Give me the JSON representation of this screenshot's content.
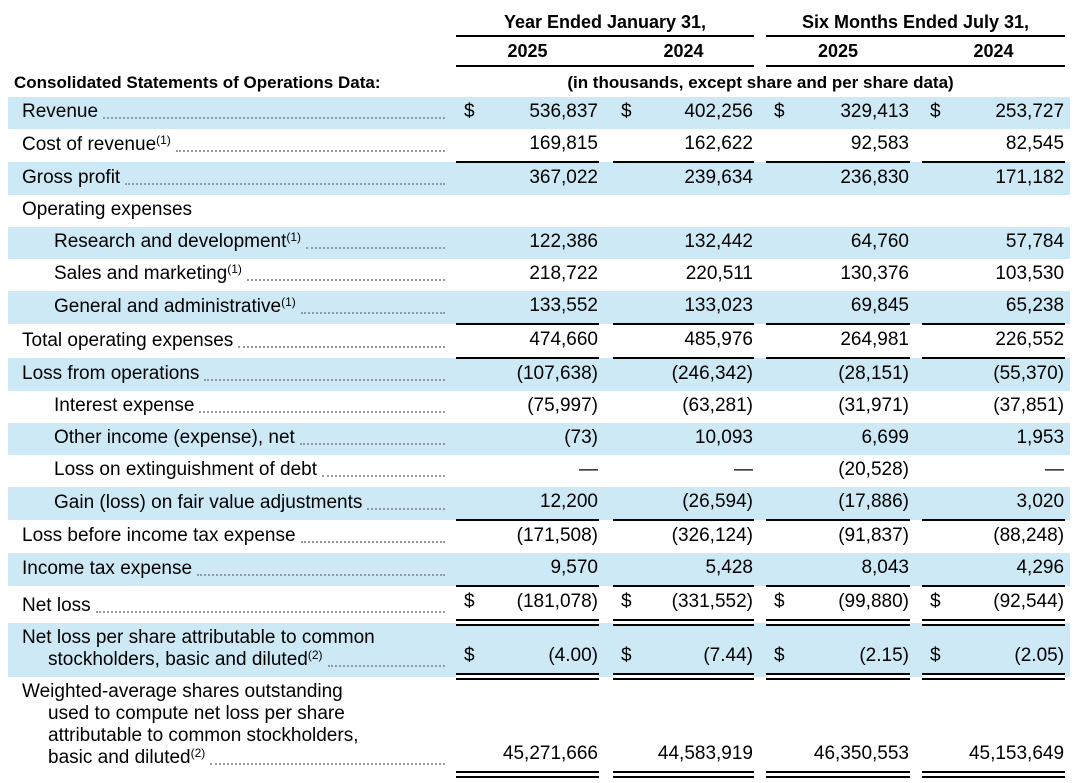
{
  "page": {
    "background_color": "#ffffff",
    "stripe_color": "#cde9f6",
    "text_color": "#000000",
    "rule_color": "#000000"
  },
  "currency_symbol": "$",
  "header": {
    "section_title": "Consolidated Statements of Operations Data:",
    "units_note": "(in thousands, except share and per share data)",
    "column_groups": [
      {
        "label": "Year Ended January 31,",
        "years": [
          "2025",
          "2024"
        ]
      },
      {
        "label": "Six Months Ended July 31,",
        "years": [
          "2025",
          "2024"
        ]
      }
    ]
  },
  "rows": [
    {
      "name": "revenue",
      "label": "Revenue",
      "sup": "",
      "indent": 0,
      "dollar": true,
      "leader": true,
      "values": [
        "536,837",
        "402,256",
        "329,413",
        "253,727"
      ],
      "rule_above": false,
      "double_below": false
    },
    {
      "name": "cost-of-revenue",
      "label": "Cost of revenue",
      "sup": "(1)",
      "indent": 0,
      "dollar": false,
      "leader": true,
      "values": [
        "169,815",
        "162,622",
        "92,583",
        "82,545"
      ],
      "rule_above": false,
      "double_below": false
    },
    {
      "name": "gross-profit",
      "label": "Gross profit",
      "sup": "",
      "indent": 0,
      "dollar": false,
      "leader": true,
      "values": [
        "367,022",
        "239,634",
        "236,830",
        "171,182"
      ],
      "rule_above": true,
      "double_below": false
    },
    {
      "name": "operating-expenses",
      "label": "Operating expenses",
      "sup": "",
      "indent": 0,
      "dollar": false,
      "leader": false,
      "values": null,
      "rule_above": false,
      "double_below": false
    },
    {
      "name": "research-and-development",
      "label": "Research and development",
      "sup": "(1)",
      "indent": 1,
      "dollar": false,
      "leader": true,
      "values": [
        "122,386",
        "132,442",
        "64,760",
        "57,784"
      ],
      "rule_above": false,
      "double_below": false
    },
    {
      "name": "sales-and-marketing",
      "label": "Sales and marketing",
      "sup": "(1)",
      "indent": 1,
      "dollar": false,
      "leader": true,
      "values": [
        "218,722",
        "220,511",
        "130,376",
        "103,530"
      ],
      "rule_above": false,
      "double_below": false
    },
    {
      "name": "general-and-administrative",
      "label": "General and administrative",
      "sup": "(1)",
      "indent": 1,
      "dollar": false,
      "leader": true,
      "values": [
        "133,552",
        "133,023",
        "69,845",
        "65,238"
      ],
      "rule_above": false,
      "double_below": false
    },
    {
      "name": "total-operating-expenses",
      "label": "Total operating expenses",
      "sup": "",
      "indent": 0,
      "dollar": false,
      "leader": true,
      "values": [
        "474,660",
        "485,976",
        "264,981",
        "226,552"
      ],
      "rule_above": true,
      "double_below": false
    },
    {
      "name": "loss-from-operations",
      "label": "Loss from operations",
      "sup": "",
      "indent": 0,
      "dollar": false,
      "leader": true,
      "values": [
        "(107,638)",
        "(246,342)",
        "(28,151)",
        "(55,370)"
      ],
      "rule_above": true,
      "double_below": false
    },
    {
      "name": "interest-expense",
      "label": "Interest expense",
      "sup": "",
      "indent": 1,
      "dollar": false,
      "leader": true,
      "values": [
        "(75,997)",
        "(63,281)",
        "(31,971)",
        "(37,851)"
      ],
      "rule_above": false,
      "double_below": false
    },
    {
      "name": "other-income-expense-net",
      "label": "Other income (expense), net",
      "sup": "",
      "indent": 1,
      "dollar": false,
      "leader": true,
      "values": [
        "(73)",
        "10,093",
        "6,699",
        "1,953"
      ],
      "rule_above": false,
      "double_below": false
    },
    {
      "name": "loss-on-extinguishment-of-debt",
      "label": "Loss on extinguishment of debt",
      "sup": "",
      "indent": 1,
      "dollar": false,
      "leader": true,
      "values": [
        "—",
        "—",
        "(20,528)",
        "—"
      ],
      "rule_above": false,
      "double_below": false
    },
    {
      "name": "gain-loss-on-fair-value-adjustments",
      "label": "Gain (loss) on fair value adjustments",
      "sup": "",
      "indent": 1,
      "dollar": false,
      "leader": true,
      "values": [
        "12,200",
        "(26,594)",
        "(17,886)",
        "3,020"
      ],
      "rule_above": false,
      "double_below": false
    },
    {
      "name": "loss-before-income-tax-expense",
      "label": "Loss before income tax expense",
      "sup": "",
      "indent": 0,
      "dollar": false,
      "leader": true,
      "values": [
        "(171,508)",
        "(326,124)",
        "(91,837)",
        "(88,248)"
      ],
      "rule_above": true,
      "double_below": false
    },
    {
      "name": "income-tax-expense",
      "label": "Income tax expense",
      "sup": "",
      "indent": 0,
      "dollar": false,
      "leader": true,
      "values": [
        "9,570",
        "5,428",
        "8,043",
        "4,296"
      ],
      "rule_above": false,
      "double_below": false
    },
    {
      "name": "net-loss",
      "label": "Net loss",
      "sup": "",
      "indent": 0,
      "dollar": true,
      "leader": true,
      "values": [
        "(181,078)",
        "(331,552)",
        "(99,880)",
        "(92,544)"
      ],
      "rule_above": true,
      "double_below": true
    },
    {
      "name": "net-loss-per-share",
      "lines": [
        "Net loss per share attributable to common",
        "stockholders, basic and diluted"
      ],
      "sup": "(2)",
      "indent": 0,
      "dollar": true,
      "leader": true,
      "values": [
        "(4.00)",
        "(7.44)",
        "(2.15)",
        "(2.05)"
      ],
      "rule_above": false,
      "double_below": true
    },
    {
      "name": "weighted-average-shares",
      "lines": [
        "Weighted-average shares outstanding",
        "used to compute net loss per share",
        "attributable to common stockholders,",
        "basic and diluted"
      ],
      "sup": "(2)",
      "indent": 0,
      "dollar": false,
      "leader": true,
      "values": [
        "45,271,666",
        "44,583,919",
        "46,350,553",
        "45,153,649"
      ],
      "rule_above": false,
      "double_below": true
    }
  ]
}
